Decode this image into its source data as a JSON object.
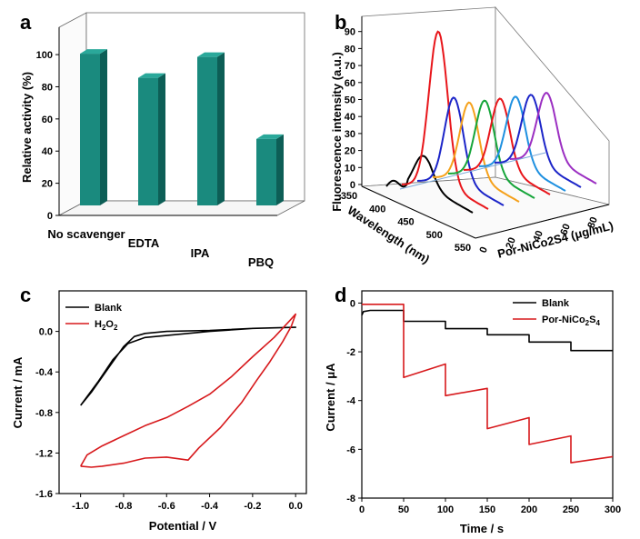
{
  "chart_data": [
    {
      "panel": "a",
      "type": "bar",
      "categories": [
        "No scavenger",
        "EDTA",
        "IPA",
        "PBQ"
      ],
      "values": [
        100,
        85,
        98,
        47
      ],
      "ylabel": "Relative activity (%)",
      "yticks": [
        "0",
        "20",
        "40",
        "60",
        "80",
        "100"
      ],
      "ylim": [
        0,
        120
      ],
      "bar_color": "#1a8a7e"
    },
    {
      "panel": "b",
      "type": "line",
      "ylabel": "Fluorescence intensity (a.u.)",
      "xlabel": "Wavelength (nm)",
      "zlabel": "Por-NiCo2S4 (μg/mL)",
      "yticks": [
        "0",
        "10",
        "20",
        "30",
        "40",
        "50",
        "60",
        "70",
        "80",
        "90"
      ],
      "xticks": [
        "350",
        "400",
        "450",
        "500",
        "550"
      ],
      "zticks": [
        "0",
        "20",
        "40",
        "60",
        "80"
      ],
      "series": [
        {
          "name": "0",
          "color": "#000000",
          "peak": 19
        },
        {
          "name": "10",
          "color": "#e8161b",
          "peak": 90
        },
        {
          "name": "20",
          "color": "#1c25c8",
          "peak": 49
        },
        {
          "name": "30",
          "color": "#f5a11b",
          "peak": 44
        },
        {
          "name": "40",
          "color": "#16a53a",
          "peak": 43
        },
        {
          "name": "50",
          "color": "#e8161b",
          "peak": 42
        },
        {
          "name": "60",
          "color": "#1e90e0",
          "peak": 41
        },
        {
          "name": "70",
          "color": "#1c25c8",
          "peak": 40
        },
        {
          "name": "80",
          "color": "#9b2fc2",
          "peak": 39
        }
      ]
    },
    {
      "panel": "c",
      "type": "line",
      "xlabel": "Potential / V",
      "ylabel": "Current / mA",
      "xlim": [
        -1.1,
        0.05
      ],
      "ylim": [
        -1.6,
        0.4
      ],
      "xticks": [
        "-1.0",
        "-0.8",
        "-0.6",
        "-0.4",
        "-0.2",
        "0.0"
      ],
      "yticks": [
        "0.0",
        "-0.4",
        "-0.8",
        "-1.2",
        "-1.6"
      ],
      "series": [
        {
          "name": "Blank",
          "color": "#000000",
          "x": [
            -1.0,
            -0.95,
            -0.9,
            -0.85,
            -0.8,
            -0.75,
            -0.7,
            -0.6,
            -0.4,
            -0.2,
            0.0,
            -0.2,
            -0.4,
            -0.6,
            -0.7,
            -0.78,
            -0.85,
            -0.92,
            -1.0
          ],
          "y": [
            -0.73,
            -0.6,
            -0.45,
            -0.3,
            -0.15,
            -0.05,
            -0.02,
            0.0,
            0.01,
            0.03,
            0.04,
            0.03,
            0.0,
            -0.04,
            -0.06,
            -0.12,
            -0.28,
            -0.5,
            -0.73
          ]
        },
        {
          "name": "H2O2",
          "color": "#d7191c",
          "x": [
            -1.0,
            -0.95,
            -0.9,
            -0.8,
            -0.7,
            -0.6,
            -0.5,
            -0.45,
            -0.35,
            -0.25,
            -0.18,
            -0.12,
            -0.06,
            -0.02,
            0.0,
            -0.03,
            -0.1,
            -0.2,
            -0.3,
            -0.4,
            -0.5,
            -0.6,
            -0.7,
            -0.8,
            -0.9,
            -0.97,
            -1.0
          ],
          "y": [
            -1.33,
            -1.34,
            -1.33,
            -1.3,
            -1.25,
            -1.24,
            -1.27,
            -1.15,
            -0.95,
            -0.7,
            -0.48,
            -0.3,
            -0.1,
            0.05,
            0.17,
            0.1,
            -0.06,
            -0.25,
            -0.45,
            -0.62,
            -0.74,
            -0.85,
            -0.93,
            -1.03,
            -1.13,
            -1.22,
            -1.33
          ]
        }
      ],
      "legend": [
        "Blank",
        "H",
        "2",
        "O",
        "2"
      ]
    },
    {
      "panel": "d",
      "type": "line",
      "xlabel": "Time / s",
      "ylabel": "Current / μA",
      "xlim": [
        0,
        300
      ],
      "ylim": [
        -8,
        0.5
      ],
      "xticks": [
        "0",
        "50",
        "100",
        "150",
        "200",
        "250",
        "300"
      ],
      "yticks": [
        "0",
        "-2",
        "-4",
        "-6",
        "-8"
      ],
      "series": [
        {
          "name": "Blank",
          "color": "#000000",
          "x": [
            0,
            2,
            10,
            50,
            50,
            100,
            100,
            150,
            150,
            200,
            200,
            250,
            250,
            300
          ],
          "y": [
            -0.5,
            -0.35,
            -0.3,
            -0.3,
            -0.75,
            -0.75,
            -1.05,
            -1.05,
            -1.3,
            -1.3,
            -1.6,
            -1.6,
            -1.95,
            -1.95
          ]
        },
        {
          "name": "Por-NiCo2S4",
          "color": "#d7191c",
          "x": [
            0,
            50,
            50,
            100,
            100,
            150,
            150,
            200,
            200,
            250,
            250,
            300
          ],
          "y": [
            -0.05,
            -0.05,
            -3.05,
            -2.5,
            -3.8,
            -3.5,
            -5.15,
            -4.7,
            -5.8,
            -5.45,
            -6.55,
            -6.3
          ]
        }
      ],
      "legend": [
        "Blank",
        "Por-NiCo",
        "2",
        "S",
        "4"
      ]
    }
  ],
  "panel_labels": [
    "a",
    "b",
    "c",
    "d"
  ]
}
